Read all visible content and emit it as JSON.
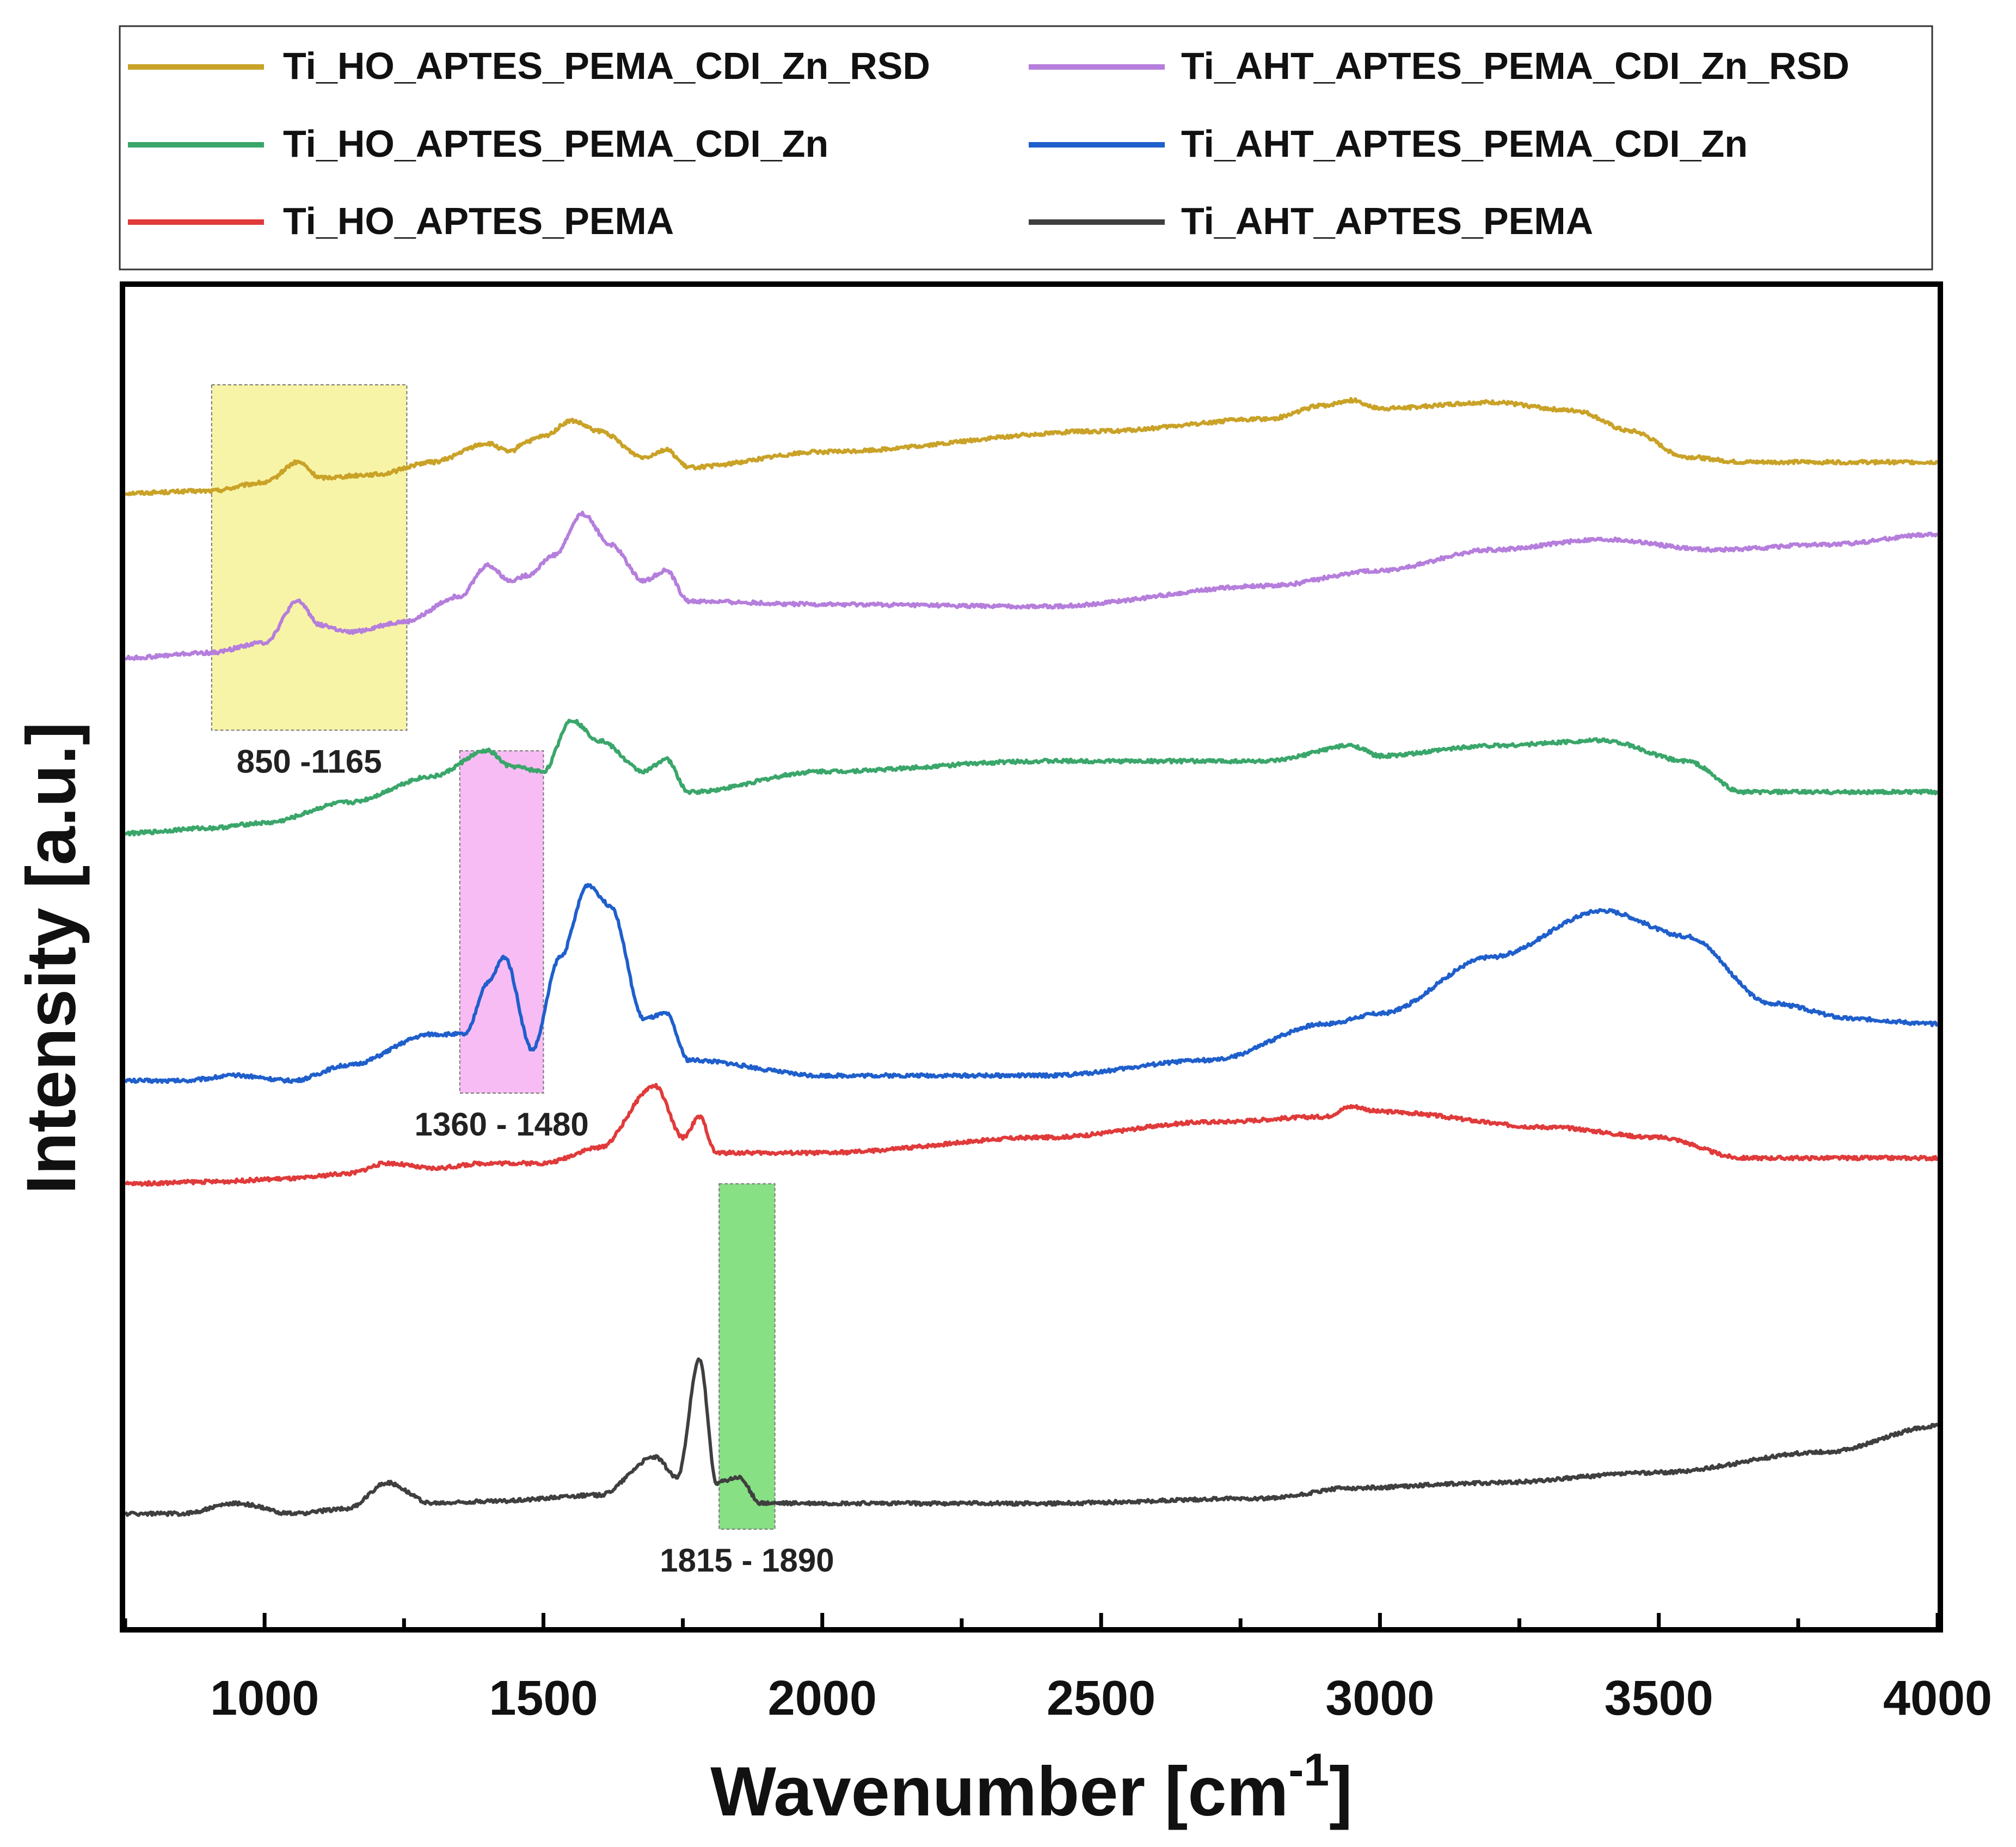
{
  "chart_data": {
    "type": "line",
    "title": "",
    "xlabel": "Wavenumber [cm",
    "xlabel_superscript": "-1",
    "xlabel_suffix": "]",
    "ylabel": "Intensity [a.u.]",
    "xlim": [
      750,
      4000
    ],
    "ylim": [
      0,
      13
    ],
    "x_ticks": [
      "1000",
      "1500",
      "2000",
      "2500",
      "3000",
      "3500",
      "4000"
    ],
    "y_ticks_shown": false,
    "legend_position": "top (above plot)",
    "series": [
      {
        "name": "Ti_HO_APTES_PEMA_CDI_Zn_RSD",
        "color": "#c9a227",
        "baseline": 11.0,
        "points": [
          [
            750,
            0.0
          ],
          [
            900,
            0.02
          ],
          [
            1000,
            0.1
          ],
          [
            1060,
            0.3
          ],
          [
            1100,
            0.15
          ],
          [
            1200,
            0.18
          ],
          [
            1300,
            0.3
          ],
          [
            1400,
            0.48
          ],
          [
            1440,
            0.4
          ],
          [
            1470,
            0.5
          ],
          [
            1500,
            0.55
          ],
          [
            1550,
            0.7
          ],
          [
            1600,
            0.6
          ],
          [
            1680,
            0.35
          ],
          [
            1720,
            0.42
          ],
          [
            1760,
            0.25
          ],
          [
            2000,
            0.4
          ],
          [
            2500,
            0.6
          ],
          [
            2800,
            0.72
          ],
          [
            2900,
            0.85
          ],
          [
            2950,
            0.9
          ],
          [
            3000,
            0.82
          ],
          [
            3200,
            0.88
          ],
          [
            3350,
            0.8
          ],
          [
            3450,
            0.6
          ],
          [
            3550,
            0.35
          ],
          [
            3650,
            0.3
          ],
          [
            4000,
            0.3
          ]
        ]
      },
      {
        "name": "Ti_AHT_APTES_PEMA_CDI_Zn_RSD",
        "color": "#b57edc",
        "baseline": 9.4,
        "points": [
          [
            750,
            0.0
          ],
          [
            900,
            0.05
          ],
          [
            1000,
            0.15
          ],
          [
            1060,
            0.55
          ],
          [
            1100,
            0.32
          ],
          [
            1150,
            0.25
          ],
          [
            1250,
            0.35
          ],
          [
            1350,
            0.6
          ],
          [
            1400,
            0.9
          ],
          [
            1440,
            0.75
          ],
          [
            1470,
            0.8
          ],
          [
            1520,
            1.0
          ],
          [
            1570,
            1.4
          ],
          [
            1620,
            1.1
          ],
          [
            1680,
            0.75
          ],
          [
            1720,
            0.85
          ],
          [
            1760,
            0.55
          ],
          [
            2000,
            0.52
          ],
          [
            2400,
            0.5
          ],
          [
            2800,
            0.7
          ],
          [
            3000,
            0.85
          ],
          [
            3200,
            1.05
          ],
          [
            3400,
            1.15
          ],
          [
            3600,
            1.05
          ],
          [
            3800,
            1.1
          ],
          [
            4000,
            1.2
          ]
        ]
      },
      {
        "name": "Ti_HO_APTES_PEMA_CDI_Zn",
        "color": "#3aa66a",
        "baseline": 7.7,
        "points": [
          [
            750,
            0.0
          ],
          [
            900,
            0.05
          ],
          [
            1000,
            0.1
          ],
          [
            1150,
            0.3
          ],
          [
            1300,
            0.55
          ],
          [
            1400,
            0.8
          ],
          [
            1440,
            0.65
          ],
          [
            1500,
            0.6
          ],
          [
            1550,
            1.1
          ],
          [
            1600,
            0.9
          ],
          [
            1680,
            0.6
          ],
          [
            1720,
            0.72
          ],
          [
            1760,
            0.4
          ],
          [
            2000,
            0.6
          ],
          [
            2400,
            0.7
          ],
          [
            2800,
            0.7
          ],
          [
            2950,
            0.85
          ],
          [
            3000,
            0.75
          ],
          [
            3200,
            0.85
          ],
          [
            3400,
            0.9
          ],
          [
            3550,
            0.7
          ],
          [
            3650,
            0.4
          ],
          [
            4000,
            0.4
          ]
        ]
      },
      {
        "name": "Ti_AHT_APTES_PEMA_CDI_Zn",
        "color": "#1f5fcc",
        "baseline": 5.3,
        "points": [
          [
            750,
            0.0
          ],
          [
            850,
            0.0
          ],
          [
            950,
            0.05
          ],
          [
            1050,
            0.0
          ],
          [
            1150,
            0.15
          ],
          [
            1300,
            0.45
          ],
          [
            1360,
            0.45
          ],
          [
            1400,
            0.95
          ],
          [
            1430,
            1.2
          ],
          [
            1480,
            0.3
          ],
          [
            1530,
            1.2
          ],
          [
            1580,
            1.9
          ],
          [
            1620,
            1.7
          ],
          [
            1680,
            0.6
          ],
          [
            1720,
            0.65
          ],
          [
            1760,
            0.2
          ],
          [
            2000,
            0.05
          ],
          [
            2400,
            0.05
          ],
          [
            2700,
            0.2
          ],
          [
            2900,
            0.55
          ],
          [
            3000,
            0.65
          ],
          [
            3200,
            1.2
          ],
          [
            3400,
            1.65
          ],
          [
            3550,
            1.4
          ],
          [
            3700,
            0.75
          ],
          [
            3850,
            0.6
          ],
          [
            4000,
            0.55
          ]
        ]
      },
      {
        "name": "Ti_HO_APTES_PEMA",
        "color": "#e03a3a",
        "baseline": 4.3,
        "points": [
          [
            750,
            0.0
          ],
          [
            900,
            0.02
          ],
          [
            1050,
            0.05
          ],
          [
            1150,
            0.1
          ],
          [
            1220,
            0.2
          ],
          [
            1300,
            0.15
          ],
          [
            1400,
            0.2
          ],
          [
            1500,
            0.2
          ],
          [
            1600,
            0.35
          ],
          [
            1700,
            0.95
          ],
          [
            1750,
            0.45
          ],
          [
            1780,
            0.65
          ],
          [
            1810,
            0.3
          ],
          [
            1850,
            0.3
          ],
          [
            2000,
            0.3
          ],
          [
            2400,
            0.45
          ],
          [
            2700,
            0.6
          ],
          [
            2900,
            0.65
          ],
          [
            2950,
            0.75
          ],
          [
            3000,
            0.7
          ],
          [
            3300,
            0.55
          ],
          [
            3500,
            0.45
          ],
          [
            3650,
            0.25
          ],
          [
            4000,
            0.25
          ]
        ]
      },
      {
        "name": "Ti_AHT_APTES_PEMA",
        "color": "#3f3f3f",
        "baseline": 1.1,
        "points": [
          [
            750,
            0.0
          ],
          [
            850,
            0.0
          ],
          [
            950,
            0.1
          ],
          [
            1050,
            0.0
          ],
          [
            1150,
            0.05
          ],
          [
            1220,
            0.3
          ],
          [
            1300,
            0.1
          ],
          [
            1400,
            0.12
          ],
          [
            1600,
            0.18
          ],
          [
            1700,
            0.55
          ],
          [
            1740,
            0.35
          ],
          [
            1780,
            1.5
          ],
          [
            1810,
            0.3
          ],
          [
            1850,
            0.35
          ],
          [
            1890,
            0.1
          ],
          [
            2000,
            0.1
          ],
          [
            2400,
            0.1
          ],
          [
            2800,
            0.15
          ],
          [
            2950,
            0.25
          ],
          [
            3200,
            0.3
          ],
          [
            3500,
            0.4
          ],
          [
            3800,
            0.6
          ],
          [
            4000,
            0.85
          ]
        ]
      }
    ],
    "highlight_regions": [
      {
        "label": "850 -1165",
        "x_range": [
          905,
          1255
        ],
        "y_range": [
          8.7,
          12.05
        ],
        "color": "#f5f08a"
      },
      {
        "label": "1360 - 1480",
        "x_range": [
          1350,
          1500
        ],
        "y_range": [
          5.18,
          8.5
        ],
        "color": "#f5a6f0"
      },
      {
        "label": "1815 - 1890",
        "x_range": [
          1815,
          1915
        ],
        "y_range": [
          0.95,
          4.3
        ],
        "color": "#5fd65a"
      }
    ]
  }
}
